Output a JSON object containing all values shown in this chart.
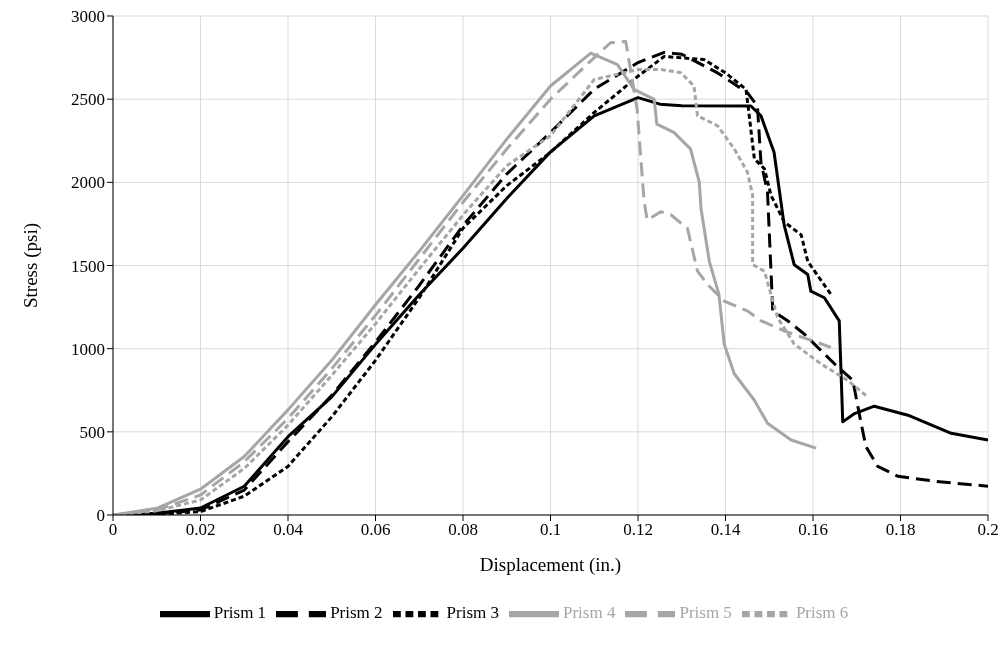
{
  "chart_data": {
    "type": "line",
    "xlabel": "Displacement (in.)",
    "ylabel": "Stress (psi)",
    "xlim": [
      0,
      0.2
    ],
    "xticks": [
      0,
      0.02,
      0.04,
      0.06,
      0.08,
      0.1,
      0.12,
      0.14,
      0.16,
      0.18,
      0.2
    ],
    "ylim": [
      0,
      3000
    ],
    "yticks": [
      0,
      500,
      1000,
      1500,
      2000,
      2500,
      3000
    ],
    "grid": true,
    "legend": "bottom",
    "marker": "none",
    "series": [
      {
        "name": "Prism 1",
        "color": "#000000",
        "line_style": "solid",
        "x": [
          0,
          0.01,
          0.02,
          0.03,
          0.04,
          0.05,
          0.06,
          0.07,
          0.08,
          0.09,
          0.1,
          0.11,
          0.12,
          0.125,
          0.13,
          0.1458,
          0.1481,
          0.1511,
          0.1534,
          0.1557,
          0.1588,
          0.1595,
          0.1626,
          0.166,
          0.1668,
          0.1695,
          0.174,
          0.1817,
          0.1916,
          0.2
        ],
        "values": [
          0,
          10,
          42,
          173,
          471,
          710,
          1026,
          1324,
          1604,
          1903,
          2183,
          2400,
          2509,
          2470,
          2460,
          2459,
          2400,
          2181,
          1744,
          1505,
          1446,
          1346,
          1306,
          1167,
          560,
          610,
          654,
          600,
          491,
          451
        ]
      },
      {
        "name": "Prism 2",
        "color": "#000000",
        "line_style": "dashed",
        "x": [
          0,
          0.01,
          0.02,
          0.03,
          0.04,
          0.05,
          0.06,
          0.07,
          0.08,
          0.09,
          0.1,
          0.11,
          0.12,
          0.126,
          0.13,
          0.1382,
          0.145,
          0.1473,
          0.1481,
          0.1496,
          0.1508,
          0.1542,
          0.158,
          0.1649,
          0.1691,
          0.171,
          0.1721,
          0.1748,
          0.1794,
          0.1878,
          0.2
        ],
        "values": [
          0,
          8,
          30,
          150,
          440,
          720,
          1040,
          1380,
          1740,
          2050,
          2300,
          2560,
          2720,
          2781,
          2770,
          2658,
          2539,
          2459,
          2121,
          1942,
          1227,
          1168,
          1088,
          909,
          810,
          551,
          412,
          292,
          233,
          203,
          173
        ]
      },
      {
        "name": "Prism 3",
        "color": "#000000",
        "line_style": "dotted",
        "x": [
          0,
          0.01,
          0.02,
          0.03,
          0.04,
          0.05,
          0.06,
          0.07,
          0.08,
          0.09,
          0.1,
          0.11,
          0.12,
          0.126,
          0.1351,
          0.14,
          0.1447,
          0.1466,
          0.1489,
          0.1504,
          0.1534,
          0.1573,
          0.1588,
          0.1641
        ],
        "values": [
          0,
          5,
          20,
          113,
          292,
          590,
          930,
          1306,
          1724,
          1980,
          2180,
          2420,
          2638,
          2757,
          2738,
          2658,
          2559,
          2141,
          2081,
          1922,
          1763,
          1684,
          1525,
          1326
        ]
      },
      {
        "name": "Prism 4",
        "color": "#a6a6a6",
        "line_style": "solid",
        "x": [
          0,
          0.01,
          0.02,
          0.03,
          0.04,
          0.05,
          0.06,
          0.07,
          0.08,
          0.09,
          0.1,
          0.1092,
          0.1153,
          0.1191,
          0.1237,
          0.1243,
          0.1282,
          0.132,
          0.134,
          0.1344,
          0.1363,
          0.1385,
          0.1397,
          0.142,
          0.1466,
          0.1496,
          0.155,
          0.1607
        ],
        "values": [
          0,
          40,
          155,
          352,
          632,
          930,
          1264,
          1586,
          1920,
          2260,
          2579,
          2777,
          2708,
          2559,
          2499,
          2350,
          2300,
          2201,
          2002,
          1843,
          1525,
          1326,
          1028,
          849,
          690,
          551,
          451,
          402
        ]
      },
      {
        "name": "Prism 5",
        "color": "#a6a6a6",
        "line_style": "dashed",
        "x": [
          0,
          0.01,
          0.02,
          0.03,
          0.04,
          0.05,
          0.06,
          0.07,
          0.08,
          0.09,
          0.1,
          0.11,
          0.1137,
          0.1172,
          0.1198,
          0.1214,
          0.1221,
          0.1252,
          0.1275,
          0.1313,
          0.1336,
          0.1359,
          0.1397,
          0.145,
          0.1481,
          0.1534,
          0.1641
        ],
        "values": [
          0,
          30,
          120,
          320,
          580,
          880,
          1200,
          1540,
          1880,
          2200,
          2500,
          2750,
          2839,
          2847,
          2439,
          1883,
          1773,
          1823,
          1805,
          1724,
          1466,
          1386,
          1286,
          1227,
          1168,
          1107,
          1008
        ]
      },
      {
        "name": "Prism 6",
        "color": "#a6a6a6",
        "line_style": "dotted",
        "x": [
          0,
          0.01,
          0.02,
          0.03,
          0.04,
          0.05,
          0.06,
          0.07,
          0.08,
          0.09,
          0.1,
          0.11,
          0.12,
          0.1252,
          0.1298,
          0.1328,
          0.1336,
          0.1382,
          0.142,
          0.145,
          0.1462,
          0.1462,
          0.1489,
          0.1519,
          0.1557,
          0.1618,
          0.1679,
          0.1725
        ],
        "values": [
          0,
          25,
          90,
          280,
          540,
          840,
          1150,
          1480,
          1803,
          2100,
          2280,
          2618,
          2678,
          2678,
          2659,
          2579,
          2400,
          2340,
          2201,
          2062,
          1923,
          1506,
          1466,
          1187,
          1028,
          909,
          810,
          710
        ]
      }
    ]
  }
}
